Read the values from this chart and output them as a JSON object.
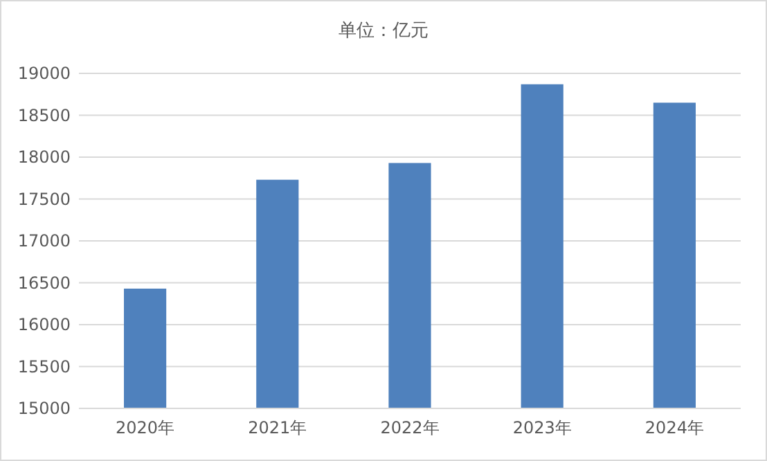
{
  "chart_data": {
    "type": "bar",
    "title": "单位：亿元",
    "categories": [
      "2020年",
      "2021年",
      "2022年",
      "2023年",
      "2024年"
    ],
    "values": [
      16430,
      17730,
      17930,
      18870,
      18650
    ],
    "color": "#4f81bd",
    "ylim": [
      15000,
      19000
    ],
    "yticks": [
      15000,
      15500,
      16000,
      16500,
      17000,
      17500,
      18000,
      18500,
      19000
    ],
    "grid": "y"
  }
}
